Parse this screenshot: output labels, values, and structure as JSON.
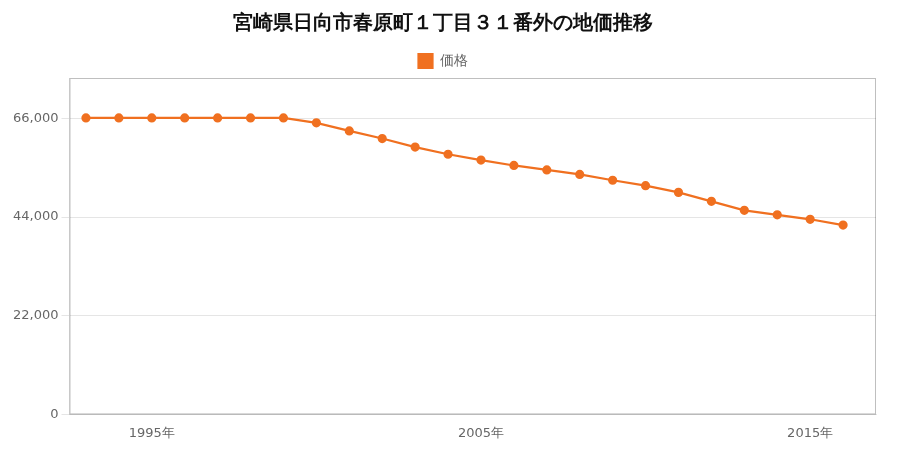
{
  "chart_data": {
    "type": "line",
    "title": "宮崎県日向市春原町１丁目３１番外の地価推移",
    "x": [
      1993,
      1994,
      1995,
      1996,
      1997,
      1998,
      1999,
      2000,
      2001,
      2002,
      2003,
      2004,
      2005,
      2006,
      2007,
      2008,
      2009,
      2010,
      2011,
      2012,
      2013,
      2014,
      2015,
      2016
    ],
    "series": [
      {
        "name": "価格",
        "color": "#f07020",
        "marker": "circle",
        "line_style": "solid",
        "values": [
          66100,
          66100,
          66100,
          66100,
          66100,
          66100,
          66100,
          65000,
          63200,
          61500,
          59600,
          58000,
          56700,
          55500,
          54500,
          53500,
          52200,
          51000,
          49500,
          47500,
          45500,
          44500,
          43500,
          42200
        ]
      }
    ],
    "xlim": [
      1992.5,
      2017.0
    ],
    "xticks": [
      {
        "value": 1995,
        "label": "1995年"
      },
      {
        "value": 2005,
        "label": "2005年"
      },
      {
        "value": 2015,
        "label": "2015年"
      }
    ],
    "ylim": [
      0,
      75000
    ],
    "yticks": [
      0,
      {
        "value": 22000,
        "label": "22,000"
      },
      {
        "value": 44000,
        "label": "44,000"
      },
      {
        "value": 66000,
        "label": "66,000"
      }
    ],
    "grid": "y",
    "legend": "top"
  }
}
